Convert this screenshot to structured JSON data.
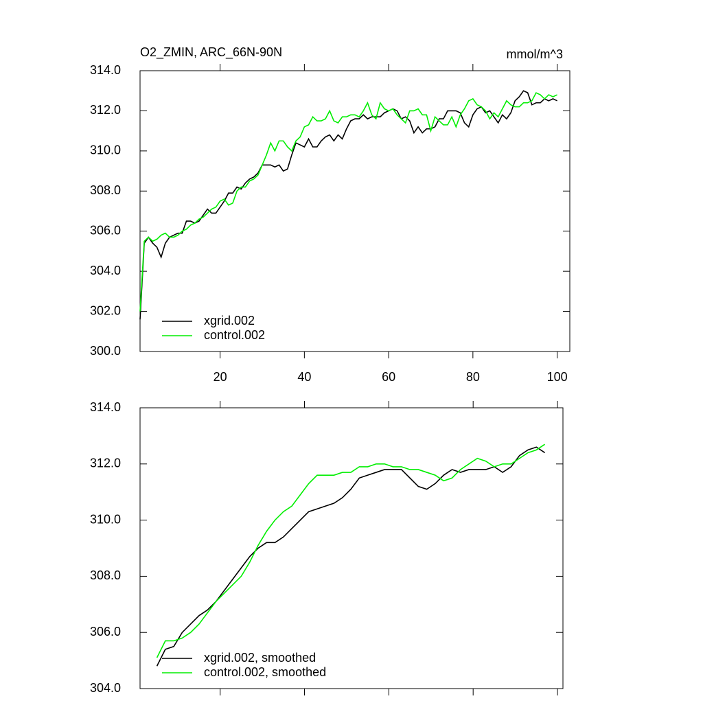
{
  "chart_data": [
    {
      "type": "line",
      "title": "O2_ZMIN, ARC_66N-90N",
      "units": "mmol/m^3",
      "x": [
        1,
        2,
        3,
        4,
        5,
        6,
        7,
        8,
        9,
        10,
        11,
        12,
        13,
        14,
        15,
        16,
        17,
        18,
        19,
        20,
        21,
        22,
        23,
        24,
        25,
        26,
        27,
        28,
        29,
        30,
        31,
        32,
        33,
        34,
        35,
        36,
        37,
        38,
        39,
        40,
        41,
        42,
        43,
        44,
        45,
        46,
        47,
        48,
        49,
        50,
        51,
        52,
        53,
        54,
        55,
        56,
        57,
        58,
        59,
        60,
        61,
        62,
        63,
        64,
        65,
        66,
        67,
        68,
        69,
        70,
        71,
        72,
        73,
        74,
        75,
        76,
        77,
        78,
        79,
        80,
        81,
        82,
        83,
        84,
        85,
        86,
        87,
        88,
        89,
        90,
        91,
        92,
        93,
        94,
        95,
        96,
        97,
        98,
        99,
        100
      ],
      "series": [
        {
          "name": "xgrid.002",
          "color": "#000000",
          "values": [
            301.6,
            305.4,
            305.7,
            305.4,
            305.2,
            304.7,
            305.4,
            305.7,
            305.8,
            305.9,
            305.9,
            306.5,
            306.5,
            306.4,
            306.5,
            306.8,
            307.1,
            306.9,
            306.9,
            307.2,
            307.5,
            307.9,
            307.9,
            308.2,
            308.1,
            308.4,
            308.6,
            308.7,
            308.9,
            309.3,
            309.3,
            309.3,
            309.2,
            309.3,
            309.0,
            309.1,
            309.8,
            310.4,
            310.3,
            310.2,
            310.6,
            310.2,
            310.2,
            310.5,
            310.7,
            310.8,
            310.5,
            310.8,
            310.6,
            311.1,
            311.5,
            311.6,
            311.6,
            311.8,
            311.6,
            311.7,
            311.7,
            311.7,
            311.9,
            312.0,
            312.1,
            312.0,
            311.6,
            311.7,
            311.5,
            310.9,
            311.2,
            310.9,
            311.1,
            311.1,
            311.2,
            311.6,
            311.6,
            312.0,
            312.0,
            312.0,
            311.9,
            311.4,
            311.2,
            311.8,
            312.1,
            312.2,
            311.9,
            312.0,
            311.7,
            311.4,
            311.8,
            311.6,
            311.9,
            312.5,
            312.7,
            313.0,
            312.9,
            312.3,
            312.4,
            312.4,
            312.6,
            312.5,
            312.6,
            312.5
          ]
        },
        {
          "name": "control.002",
          "color": "#00ee00",
          "values": [
            302.0,
            305.5,
            305.7,
            305.5,
            305.6,
            305.8,
            305.9,
            305.7,
            305.7,
            305.8,
            306.0,
            306.1,
            306.3,
            306.4,
            306.6,
            306.7,
            306.9,
            307.1,
            307.2,
            307.5,
            307.6,
            307.3,
            307.4,
            308.0,
            308.2,
            308.2,
            308.5,
            308.6,
            308.8,
            309.3,
            309.8,
            310.4,
            310.0,
            310.5,
            310.5,
            310.2,
            310.0,
            310.5,
            310.7,
            311.2,
            311.3,
            311.7,
            311.5,
            311.5,
            311.6,
            312.0,
            311.5,
            311.4,
            311.7,
            311.7,
            311.8,
            311.8,
            311.7,
            312.0,
            312.4,
            311.8,
            311.6,
            312.4,
            312.1,
            312.0,
            312.1,
            311.8,
            311.6,
            311.4,
            312.0,
            312.0,
            312.1,
            311.8,
            311.8,
            311.0,
            311.7,
            311.5,
            311.3,
            311.3,
            311.7,
            311.2,
            311.8,
            312.1,
            312.5,
            312.6,
            312.3,
            312.2,
            312.0,
            311.6,
            311.9,
            311.7,
            312.1,
            312.5,
            312.3,
            312.2,
            312.2,
            312.4,
            312.4,
            312.5,
            312.9,
            312.8,
            312.6,
            312.8,
            312.7,
            312.8
          ]
        }
      ],
      "xlim": [
        1,
        103
      ],
      "ylim": [
        300,
        314
      ],
      "xticks": [
        20,
        40,
        60,
        80,
        100
      ],
      "yticks": [
        {
          "value": 300,
          "label": "300.0"
        },
        {
          "value": 302,
          "label": "302.0"
        },
        {
          "value": 304,
          "label": "304.0"
        },
        {
          "value": 306,
          "label": "306.0"
        },
        {
          "value": 308,
          "label": "308.0"
        },
        {
          "value": 310,
          "label": "310.0"
        },
        {
          "value": 312,
          "label": "312.0"
        },
        {
          "value": 314,
          "label": "314.0"
        }
      ],
      "legend": "lower left"
    },
    {
      "type": "line",
      "x": [
        5,
        7,
        9,
        11,
        13,
        15,
        17,
        19,
        21,
        23,
        25,
        27,
        29,
        31,
        33,
        35,
        37,
        39,
        41,
        43,
        45,
        47,
        49,
        51,
        53,
        55,
        57,
        59,
        61,
        63,
        65,
        67,
        69,
        71,
        73,
        75,
        77,
        79,
        81,
        83,
        85,
        87,
        89,
        91,
        93,
        95,
        97
      ],
      "series": [
        {
          "name": "xgrid.002, smoothed",
          "color": "#000000",
          "values": [
            304.8,
            305.4,
            305.5,
            306.0,
            306.3,
            306.6,
            306.8,
            307.1,
            307.5,
            307.9,
            308.3,
            308.7,
            309.0,
            309.2,
            309.2,
            309.4,
            309.7,
            310.0,
            310.3,
            310.4,
            310.5,
            310.6,
            310.8,
            311.1,
            311.5,
            311.6,
            311.7,
            311.8,
            311.8,
            311.8,
            311.5,
            311.2,
            311.1,
            311.3,
            311.6,
            311.8,
            311.7,
            311.8,
            311.8,
            311.8,
            311.9,
            311.7,
            311.9,
            312.3,
            312.5,
            312.6,
            312.4
          ]
        },
        {
          "name": "control.002, smoothed",
          "color": "#00ee00",
          "values": [
            305.1,
            305.7,
            305.7,
            305.8,
            306.0,
            306.3,
            306.7,
            307.1,
            307.4,
            307.7,
            308.0,
            308.5,
            309.1,
            309.6,
            310.0,
            310.3,
            310.5,
            310.9,
            311.3,
            311.6,
            311.6,
            311.6,
            311.7,
            311.7,
            311.9,
            311.9,
            312.0,
            312.0,
            311.9,
            311.9,
            311.8,
            311.8,
            311.7,
            311.6,
            311.4,
            311.5,
            311.8,
            312.0,
            312.2,
            312.1,
            311.9,
            312.0,
            312.0,
            312.2,
            312.4,
            312.5,
            312.7
          ]
        }
      ],
      "xlim": [
        1,
        101.3
      ],
      "ylim": [
        304,
        314
      ],
      "xticks": [
        20,
        40,
        60,
        80,
        100
      ],
      "yticks": [
        {
          "value": 304,
          "label": "304.0"
        },
        {
          "value": 306,
          "label": "306.0"
        },
        {
          "value": 308,
          "label": "308.0"
        },
        {
          "value": 310,
          "label": "310.0"
        },
        {
          "value": 312,
          "label": "312.0"
        },
        {
          "value": 314,
          "label": "314.0"
        }
      ],
      "legend": "lower left"
    }
  ]
}
